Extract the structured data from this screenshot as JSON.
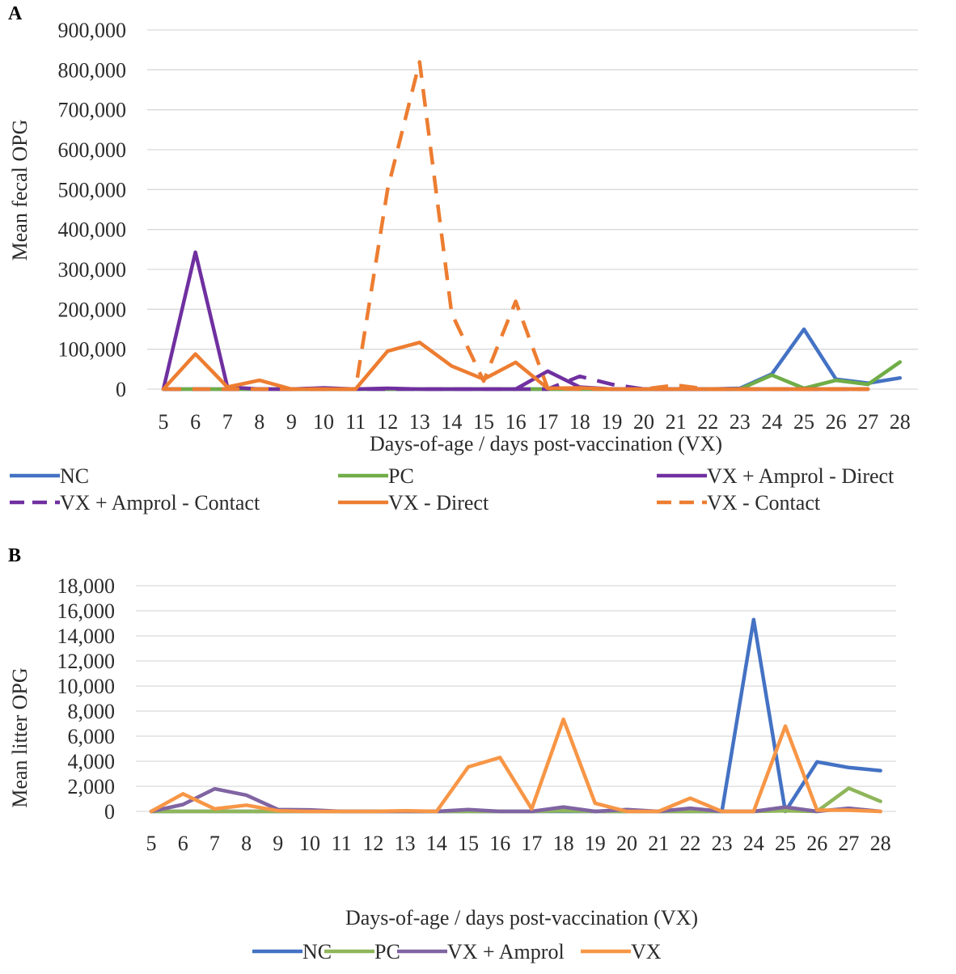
{
  "chart_data": [
    {
      "panel": "A",
      "type": "line",
      "title": "",
      "xlabel": "Days-of-age / days post-vaccination (VX)",
      "ylabel": "Mean fecal OPG",
      "ylim": [
        0,
        900000
      ],
      "yticks": [
        "0",
        "100,000",
        "200,000",
        "300,000",
        "400,000",
        "500,000",
        "600,000",
        "700,000",
        "800,000",
        "900,000"
      ],
      "categories": [
        "5",
        "6",
        "7",
        "8",
        "9",
        "10",
        "11",
        "12",
        "13",
        "14",
        "15",
        "16",
        "17",
        "18",
        "19",
        "20",
        "21",
        "22",
        "23",
        "24",
        "25",
        "26",
        "27",
        "28"
      ],
      "grid": true,
      "legend_position": "bottom",
      "series": [
        {
          "name": "NC",
          "color": "#4472c4",
          "dash": false,
          "values": [
            0,
            0,
            0,
            0,
            0,
            0,
            0,
            0,
            0,
            0,
            0,
            0,
            0,
            0,
            0,
            0,
            0,
            0,
            2000,
            38000,
            150000,
            25000,
            15000,
            28000
          ]
        },
        {
          "name": "PC",
          "color": "#70ad47",
          "dash": false,
          "values": [
            0,
            0,
            0,
            0,
            0,
            0,
            0,
            0,
            0,
            0,
            0,
            0,
            0,
            0,
            0,
            0,
            0,
            0,
            0,
            35000,
            2000,
            22000,
            12000,
            68000
          ]
        },
        {
          "name": "VX + Amprol - Direct",
          "color": "#7030a0",
          "dash": false,
          "values": [
            0,
            343000,
            5000,
            0,
            0,
            3000,
            0,
            2000,
            0,
            0,
            0,
            0,
            45000,
            5000,
            0,
            0,
            0,
            0,
            0,
            0,
            0,
            0,
            0,
            null
          ]
        },
        {
          "name": "VX + Amprol - Contact",
          "color": "#7030a0",
          "dash": true,
          "values": [
            0,
            0,
            0,
            0,
            0,
            0,
            0,
            0,
            0,
            0,
            0,
            0,
            0,
            32000,
            12000,
            0,
            0,
            0,
            0,
            0,
            0,
            0,
            0,
            null
          ]
        },
        {
          "name": "VX - Direct",
          "color": "#ed7d31",
          "dash": false,
          "values": [
            0,
            88000,
            5000,
            22000,
            0,
            0,
            0,
            95000,
            117000,
            58000,
            25000,
            67000,
            2000,
            3000,
            0,
            0,
            0,
            0,
            0,
            0,
            0,
            0,
            0,
            null
          ]
        },
        {
          "name": "VX - Contact",
          "color": "#ed7d31",
          "dash": true,
          "values": [
            0,
            0,
            0,
            0,
            0,
            0,
            0,
            500000,
            820000,
            190000,
            20000,
            220000,
            2000,
            0,
            0,
            0,
            10000,
            0,
            0,
            0,
            0,
            0,
            0,
            null
          ]
        }
      ]
    },
    {
      "panel": "B",
      "type": "line",
      "title": "",
      "xlabel": "Days-of-age / days post-vaccination (VX)",
      "ylabel": "Mean litter OPG",
      "ylim": [
        0,
        18000
      ],
      "yticks": [
        "0",
        "2,000",
        "4,000",
        "6,000",
        "8,000",
        "10,000",
        "12,000",
        "14,000",
        "16,000",
        "18,000"
      ],
      "categories": [
        "5",
        "6",
        "7",
        "8",
        "9",
        "10",
        "11",
        "12",
        "13",
        "14",
        "15",
        "16",
        "17",
        "18",
        "19",
        "20",
        "21",
        "22",
        "23",
        "24",
        "25",
        "26",
        "27",
        "28"
      ],
      "grid": true,
      "legend_position": "bottom",
      "series": [
        {
          "name": "NC",
          "color": "#4472c4",
          "values": [
            0,
            0,
            0,
            0,
            0,
            0,
            0,
            0,
            0,
            0,
            0,
            0,
            0,
            0,
            0,
            0,
            0,
            0,
            0,
            15300,
            0,
            3950,
            3500,
            3250
          ]
        },
        {
          "name": "PC",
          "color": "#8fb65a",
          "values": [
            0,
            0,
            0,
            0,
            0,
            0,
            0,
            0,
            0,
            0,
            0,
            0,
            0,
            50,
            0,
            0,
            0,
            0,
            0,
            0,
            50,
            0,
            1850,
            800
          ]
        },
        {
          "name": "VX + Amprol",
          "color": "#8064a2",
          "values": [
            0,
            550,
            1800,
            1300,
            150,
            120,
            0,
            0,
            0,
            0,
            150,
            0,
            0,
            350,
            0,
            150,
            0,
            250,
            0,
            0,
            350,
            0,
            250,
            0
          ]
        },
        {
          "name": "VX",
          "color": "#f79646",
          "values": [
            0,
            1400,
            200,
            500,
            50,
            0,
            0,
            0,
            50,
            0,
            3550,
            4300,
            200,
            7350,
            650,
            0,
            0,
            1050,
            0,
            0,
            6800,
            100,
            100,
            0
          ]
        }
      ]
    }
  ]
}
